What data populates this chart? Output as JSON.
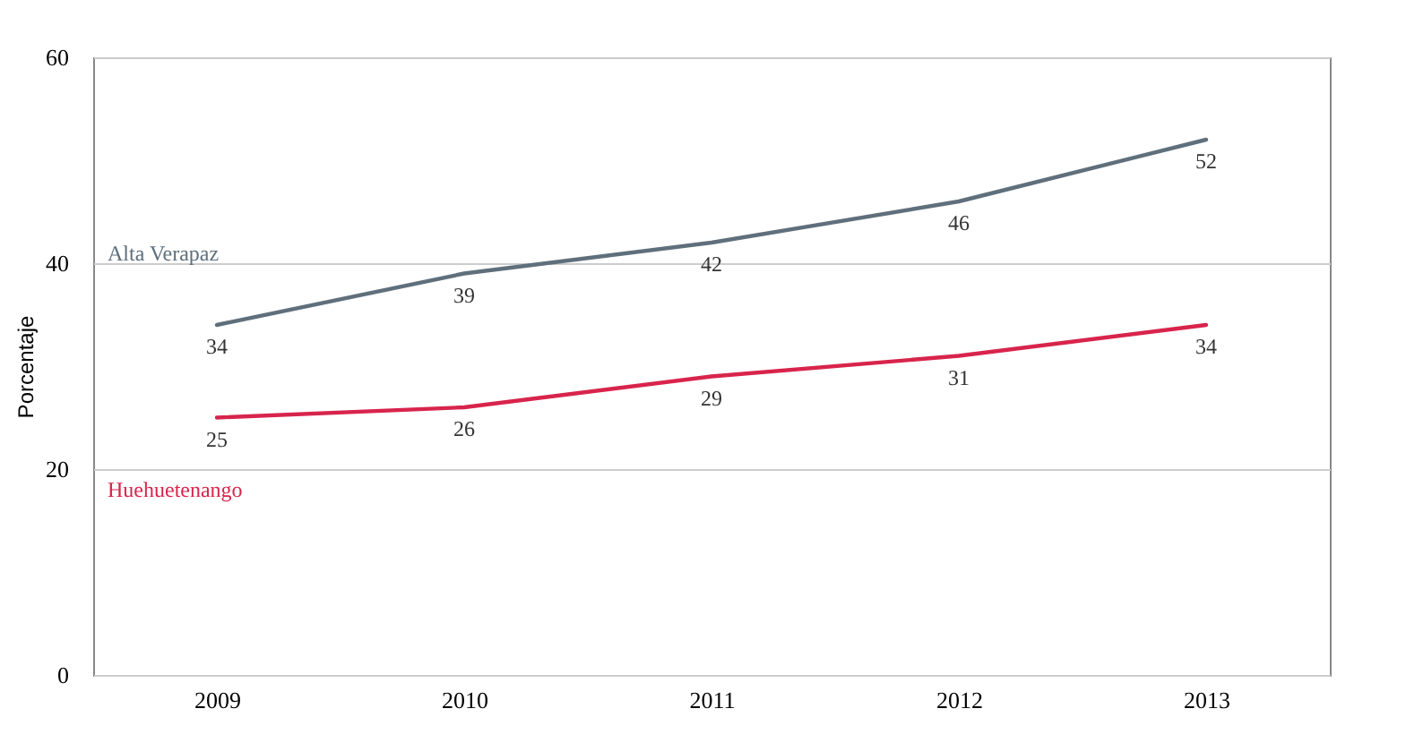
{
  "chart_data": {
    "type": "line",
    "ylabel": "Porcentaje",
    "categories": [
      "2009",
      "2010",
      "2011",
      "2012",
      "2013"
    ],
    "series": [
      {
        "name": "Alta Verapaz",
        "color": "#5f6f7c",
        "values": [
          34,
          39,
          42,
          46,
          52
        ]
      },
      {
        "name": "Huehuetenango",
        "color": "#d8244c",
        "values": [
          25,
          26,
          29,
          31,
          34
        ]
      }
    ],
    "ylim": [
      0,
      60
    ],
    "yticks": [
      0,
      20,
      40,
      60
    ],
    "grid": "y",
    "data_labels": true,
    "marker": "none",
    "line_style": "solid",
    "legend": false
  }
}
